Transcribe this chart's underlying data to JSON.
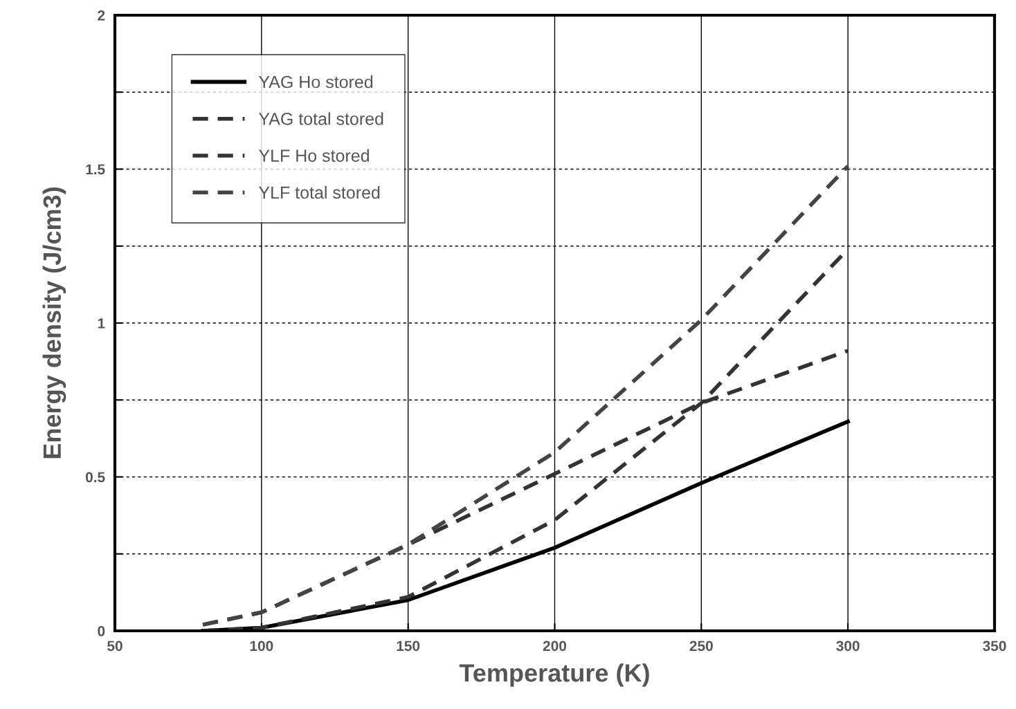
{
  "chart_data": {
    "type": "line",
    "xlabel": "Temperature (K)",
    "ylabel": "Energy density (J/cm3)",
    "xlim": [
      50,
      350
    ],
    "xticks": [
      50,
      100,
      150,
      200,
      250,
      300,
      350
    ],
    "ylim": [
      0,
      2
    ],
    "yticks": [
      0,
      {
        "value": 0.25,
        "label": null
      },
      0.5,
      {
        "value": 0.75,
        "label": null
      },
      1,
      {
        "value": 1.25,
        "label": null
      },
      1.5,
      {
        "value": 1.75,
        "label": null
      },
      2
    ],
    "grid": true,
    "legend": "top left",
    "marker": "none",
    "series": [
      {
        "name": "YAG Ho stored",
        "color": "#000000",
        "line_style": "solid",
        "x": [
          80,
          100,
          150,
          200,
          250,
          300
        ],
        "values": [
          0.0,
          0.01,
          0.1,
          0.27,
          0.48,
          0.68
        ]
      },
      {
        "name": "YAG total stored",
        "color": "#333333",
        "line_style": "dashed",
        "x": [
          80,
          100,
          150,
          200,
          250,
          300
        ],
        "values": [
          0.0,
          0.01,
          0.11,
          0.36,
          0.74,
          1.24
        ]
      },
      {
        "name": "YLF Ho stored",
        "color": "#333333",
        "line_style": "dashed",
        "x": [
          80,
          100,
          150,
          200,
          250,
          300
        ],
        "values": [
          0.02,
          0.06,
          0.28,
          0.51,
          0.74,
          0.91
        ]
      },
      {
        "name": "YLF total stored",
        "color": "#444444",
        "line_style": "dashed",
        "x": [
          80,
          100,
          150,
          200,
          250,
          300
        ],
        "values": [
          0.02,
          0.06,
          0.28,
          0.58,
          1.01,
          1.51
        ]
      }
    ]
  }
}
